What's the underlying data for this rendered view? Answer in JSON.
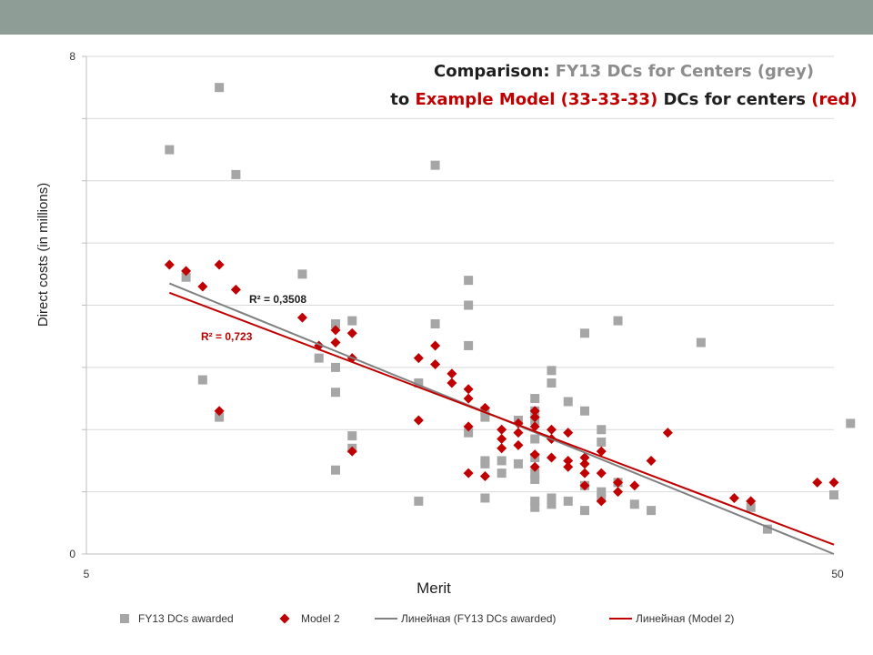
{
  "colors": {
    "top_bar": "#8e9e97",
    "grey_series": "#a6a6a6",
    "red_series": "#c00000",
    "grey_trend": "#808080",
    "red_trend": "#c00000",
    "title_dark": "#1f1f1f",
    "grid": "#d9d9d9"
  },
  "chart_data": {
    "type": "scatter",
    "title_parts": {
      "line1": [
        {
          "text": "Comparison: ",
          "color": "dark"
        },
        {
          "text": "FY13 DCs for Centers (grey)",
          "color": "grey"
        }
      ],
      "line2": [
        {
          "text": "to ",
          "color": "dark"
        },
        {
          "text": "Example Model (33-33-33)",
          "color": "red"
        },
        {
          "text": " DCs for centers ",
          "color": "dark"
        },
        {
          "text": "(red)",
          "color": "red"
        }
      ]
    },
    "xlabel": "Merit",
    "ylabel": "Direct costs (in millions)",
    "xlim": [
      5,
      50
    ],
    "ylim": [
      0,
      8
    ],
    "x_tick_labels": [
      "5",
      "50"
    ],
    "y_tick_labels": [
      "0",
      "8"
    ],
    "y_gridlines": [
      1,
      2,
      3,
      4,
      5,
      6,
      7,
      8
    ],
    "legend_position": "bottom",
    "series": [
      {
        "name": "FY13 DCs awarded",
        "marker": "square",
        "points": [
          [
            10,
            6.5
          ],
          [
            11,
            4.45
          ],
          [
            12,
            2.8
          ],
          [
            13,
            7.5
          ],
          [
            13,
            2.2
          ],
          [
            14,
            6.1
          ],
          [
            18,
            4.5
          ],
          [
            19,
            3.15
          ],
          [
            20,
            3.7
          ],
          [
            20,
            3.0
          ],
          [
            20,
            2.6
          ],
          [
            20,
            1.35
          ],
          [
            21,
            3.75
          ],
          [
            21,
            1.9
          ],
          [
            21,
            1.7
          ],
          [
            25,
            2.75
          ],
          [
            25,
            0.85
          ],
          [
            26,
            6.25
          ],
          [
            26,
            3.7
          ],
          [
            28,
            4.4
          ],
          [
            28,
            4.0
          ],
          [
            28,
            3.35
          ],
          [
            28,
            1.95
          ],
          [
            29,
            2.3
          ],
          [
            29,
            2.2
          ],
          [
            29,
            1.5
          ],
          [
            29,
            1.45
          ],
          [
            29,
            0.9
          ],
          [
            30,
            1.5
          ],
          [
            30,
            1.3
          ],
          [
            31,
            2.15
          ],
          [
            31,
            1.45
          ],
          [
            32,
            2.5
          ],
          [
            32,
            2.3
          ],
          [
            32,
            2.15
          ],
          [
            32,
            1.85
          ],
          [
            32,
            1.55
          ],
          [
            32,
            1.3
          ],
          [
            32,
            1.2
          ],
          [
            32,
            0.85
          ],
          [
            32,
            0.75
          ],
          [
            33,
            2.95
          ],
          [
            33,
            2.75
          ],
          [
            33,
            0.9
          ],
          [
            33,
            0.8
          ],
          [
            34,
            2.45
          ],
          [
            34,
            0.85
          ],
          [
            35,
            3.55
          ],
          [
            35,
            2.3
          ],
          [
            35,
            1.1
          ],
          [
            35,
            0.7
          ],
          [
            36,
            2.0
          ],
          [
            36,
            1.8
          ],
          [
            36,
            1.0
          ],
          [
            36,
            0.9
          ],
          [
            37,
            3.75
          ],
          [
            37,
            1.15
          ],
          [
            38,
            0.8
          ],
          [
            39,
            0.7
          ],
          [
            42,
            3.4
          ],
          [
            45,
            0.75
          ],
          [
            46,
            0.4
          ],
          [
            50,
            0.95
          ],
          [
            51,
            2.1
          ]
        ]
      },
      {
        "name": "Model 2",
        "marker": "diamond",
        "points": [
          [
            10,
            4.65
          ],
          [
            11,
            4.55
          ],
          [
            12,
            4.3
          ],
          [
            13,
            4.65
          ],
          [
            13,
            2.3
          ],
          [
            14,
            4.25
          ],
          [
            18,
            3.8
          ],
          [
            19,
            3.35
          ],
          [
            20,
            3.6
          ],
          [
            20,
            3.4
          ],
          [
            21,
            3.55
          ],
          [
            21,
            3.15
          ],
          [
            21,
            1.65
          ],
          [
            25,
            3.15
          ],
          [
            25,
            2.15
          ],
          [
            26,
            3.35
          ],
          [
            26,
            3.05
          ],
          [
            27,
            2.9
          ],
          [
            27,
            2.75
          ],
          [
            28,
            2.65
          ],
          [
            28,
            2.5
          ],
          [
            28,
            2.05
          ],
          [
            28,
            1.3
          ],
          [
            29,
            2.35
          ],
          [
            29,
            1.25
          ],
          [
            30,
            2.0
          ],
          [
            30,
            1.85
          ],
          [
            30,
            1.7
          ],
          [
            31,
            2.1
          ],
          [
            31,
            1.95
          ],
          [
            31,
            1.75
          ],
          [
            32,
            2.3
          ],
          [
            32,
            2.2
          ],
          [
            32,
            2.05
          ],
          [
            32,
            1.6
          ],
          [
            32,
            1.4
          ],
          [
            33,
            2.0
          ],
          [
            33,
            1.85
          ],
          [
            33,
            1.55
          ],
          [
            34,
            1.95
          ],
          [
            34,
            1.5
          ],
          [
            34,
            1.4
          ],
          [
            35,
            1.55
          ],
          [
            35,
            1.45
          ],
          [
            35,
            1.3
          ],
          [
            35,
            1.1
          ],
          [
            36,
            1.65
          ],
          [
            36,
            1.3
          ],
          [
            36,
            0.85
          ],
          [
            37,
            1.15
          ],
          [
            37,
            1.0
          ],
          [
            38,
            1.1
          ],
          [
            39,
            1.5
          ],
          [
            40,
            1.95
          ],
          [
            44,
            0.9
          ],
          [
            45,
            0.85
          ],
          [
            49,
            1.15
          ],
          [
            50,
            1.15
          ]
        ]
      },
      {
        "name": "Линейная (FY13 DCs awarded)",
        "type": "trendline",
        "from": [
          10,
          4.35
        ],
        "to": [
          50,
          0.0
        ],
        "r2_label": "R² = 0,3508"
      },
      {
        "name": "Линейная (Model 2)",
        "type": "trendline",
        "from": [
          10,
          4.2
        ],
        "to": [
          50,
          0.15
        ],
        "r2_label": "R² = 0,723"
      }
    ]
  }
}
